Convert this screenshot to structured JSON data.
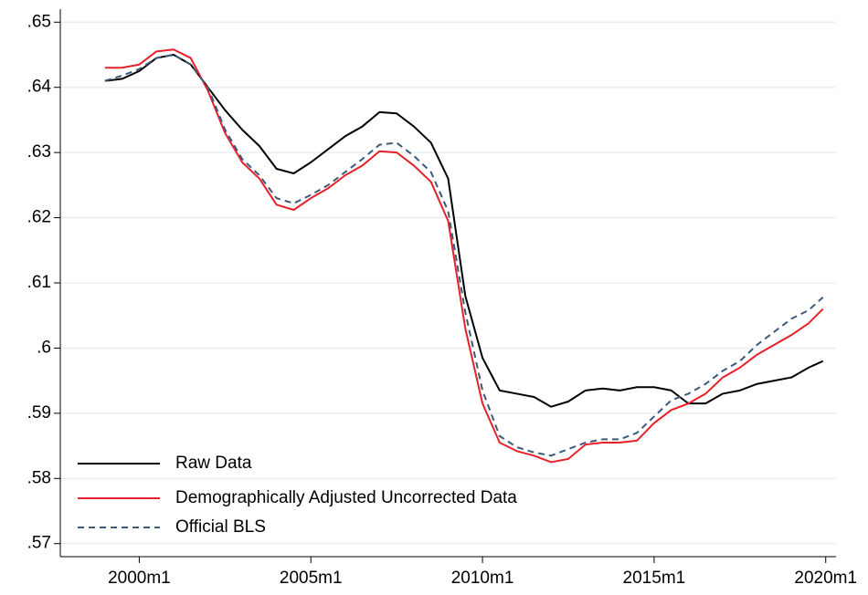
{
  "chart_data": {
    "type": "line",
    "x": [
      1999,
      1999.5,
      2000,
      2000.5,
      2001,
      2001.5,
      2002,
      2002.5,
      2003,
      2003.5,
      2004,
      2004.5,
      2005,
      2005.5,
      2006,
      2006.5,
      2007,
      2007.5,
      2008,
      2008.5,
      2009,
      2009.5,
      2010,
      2010.5,
      2011,
      2011.5,
      2012,
      2012.5,
      2013,
      2013.5,
      2014,
      2014.5,
      2015,
      2015.5,
      2016,
      2016.5,
      2017,
      2017.5,
      2018,
      2018.5,
      2019,
      2019.5,
      2019.92
    ],
    "series": [
      {
        "name": "Raw Data",
        "color": "#000000",
        "style": "solid",
        "values": [
          0.641,
          0.6413,
          0.6425,
          0.6445,
          0.645,
          0.6435,
          0.64,
          0.6365,
          0.6335,
          0.631,
          0.6275,
          0.6268,
          0.6285,
          0.6305,
          0.6325,
          0.634,
          0.6362,
          0.636,
          0.634,
          0.6315,
          0.626,
          0.608,
          0.5985,
          0.5935,
          0.593,
          0.5925,
          0.591,
          0.5918,
          0.5935,
          0.5938,
          0.5935,
          0.594,
          0.594,
          0.5935,
          0.5915,
          0.5915,
          0.593,
          0.5935,
          0.5945,
          0.595,
          0.5955,
          0.597,
          0.598
        ]
      },
      {
        "name": "Demographically Adjusted Uncorrected Data",
        "color": "#e8202a",
        "style": "solid",
        "values": [
          0.643,
          0.643,
          0.6435,
          0.6455,
          0.6458,
          0.6445,
          0.6395,
          0.633,
          0.6285,
          0.626,
          0.622,
          0.6212,
          0.623,
          0.6245,
          0.6265,
          0.628,
          0.6302,
          0.63,
          0.628,
          0.6255,
          0.6195,
          0.603,
          0.5915,
          0.5855,
          0.5842,
          0.5835,
          0.5825,
          0.583,
          0.5852,
          0.5855,
          0.5855,
          0.5858,
          0.5885,
          0.5905,
          0.5915,
          0.593,
          0.5955,
          0.597,
          0.599,
          0.6005,
          0.602,
          0.6038,
          0.606
        ]
      },
      {
        "name": "Official BLS",
        "color": "#3b5a7a",
        "style": "dashed",
        "values": [
          0.641,
          0.6418,
          0.6428,
          0.6445,
          0.645,
          0.6435,
          0.64,
          0.6335,
          0.629,
          0.6265,
          0.623,
          0.6222,
          0.6235,
          0.625,
          0.627,
          0.629,
          0.6312,
          0.6315,
          0.6295,
          0.627,
          0.621,
          0.6055,
          0.5935,
          0.5865,
          0.5848,
          0.584,
          0.5835,
          0.5845,
          0.5855,
          0.586,
          0.586,
          0.587,
          0.5895,
          0.592,
          0.593,
          0.5945,
          0.5965,
          0.598,
          0.6005,
          0.6025,
          0.6045,
          0.6058,
          0.6078
        ]
      }
    ],
    "xlim": [
      1997.7,
      2020.3
    ],
    "xticks": [
      {
        "value": 2000,
        "label": "2000m1"
      },
      {
        "value": 2005,
        "label": "2005m1"
      },
      {
        "value": 2010,
        "label": "2010m1"
      },
      {
        "value": 2015,
        "label": "2015m1"
      },
      {
        "value": 2020,
        "label": "2020m1"
      }
    ],
    "ylim": [
      0.568,
      0.652
    ],
    "yticks": [
      {
        "value": 0.57,
        "label": ".57"
      },
      {
        "value": 0.58,
        "label": ".58"
      },
      {
        "value": 0.59,
        "label": ".59"
      },
      {
        "value": 0.6,
        "label": ".6"
      },
      {
        "value": 0.61,
        "label": ".61"
      },
      {
        "value": 0.62,
        "label": ".62"
      },
      {
        "value": 0.63,
        "label": ".63"
      },
      {
        "value": 0.64,
        "label": ".64"
      },
      {
        "value": 0.65,
        "label": ".65"
      }
    ],
    "grid": true,
    "legend": "lower-left"
  }
}
